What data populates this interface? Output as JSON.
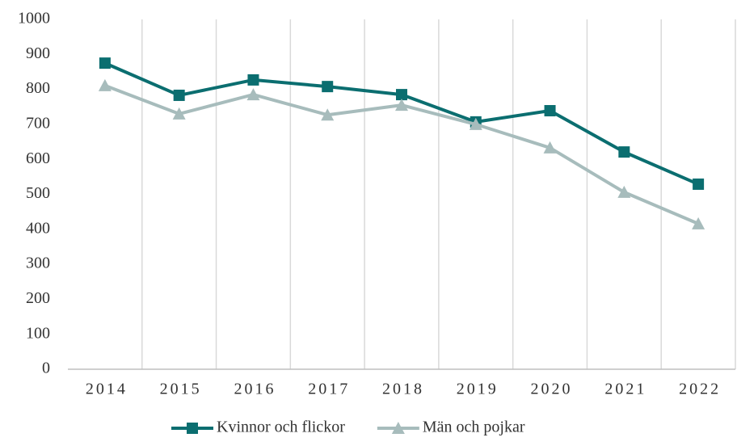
{
  "chart_data": {
    "type": "line",
    "categories": [
      "2014",
      "2015",
      "2016",
      "2017",
      "2018",
      "2019",
      "2020",
      "2021",
      "2022"
    ],
    "series": [
      {
        "name": "Kvinnor och flickor",
        "color": "#0b6e70",
        "marker": "square",
        "values": [
          875,
          783,
          827,
          808,
          785,
          707,
          739,
          621,
          529
        ]
      },
      {
        "name": "Män och pojkar",
        "color": "#a7bcbc",
        "marker": "triangle",
        "values": [
          811,
          730,
          785,
          727,
          755,
          700,
          633,
          506,
          416
        ]
      }
    ],
    "ylim": [
      0,
      1000
    ],
    "yticks": [
      0,
      100,
      200,
      300,
      400,
      500,
      600,
      700,
      800,
      900,
      1000
    ],
    "legend": "bottom"
  }
}
